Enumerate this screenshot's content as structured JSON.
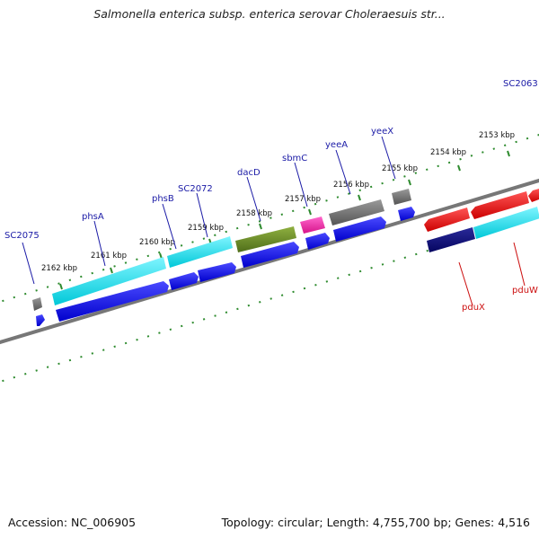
{
  "title": "Salmonella enterica subsp. enterica serovar Choleraesuis str...",
  "footer": {
    "accession": "Accession: NC_006905",
    "summary": "Topology: circular; Length: 4,755,700 bp; Genes: 4,516"
  },
  "colors": {
    "backbone": "#777777",
    "tick": "#2e8b2e",
    "label_forward": "#1a1aa6",
    "label_reverse": "#cc1111",
    "leader_forward": "#1a1aa6",
    "leader_reverse": "#cc1111"
  },
  "scale_labels": [
    "2162 kbp",
    "2161 kbp",
    "2160 kbp",
    "2159 kbp",
    "2158 kbp",
    "2157 kbp",
    "2156 kbp",
    "2155 kbp",
    "2154 kbp",
    "2153 kbp"
  ],
  "gene_labels": [
    {
      "text": "SC2075",
      "strand": "forward"
    },
    {
      "text": "phsA",
      "strand": "forward"
    },
    {
      "text": "phsB",
      "strand": "forward"
    },
    {
      "text": "SC2072",
      "strand": "forward"
    },
    {
      "text": "dacD",
      "strand": "forward"
    },
    {
      "text": "sbmC",
      "strand": "forward"
    },
    {
      "text": "yeeA",
      "strand": "forward"
    },
    {
      "text": "yeeX",
      "strand": "forward"
    },
    {
      "text": "SC2063",
      "strand": "forward"
    },
    {
      "text": "pduX",
      "strand": "reverse"
    },
    {
      "text": "pduW",
      "strand": "reverse"
    }
  ],
  "feature_colors": [
    "blue",
    "cyan",
    "gray",
    "olive-green",
    "magenta",
    "red",
    "navy"
  ]
}
